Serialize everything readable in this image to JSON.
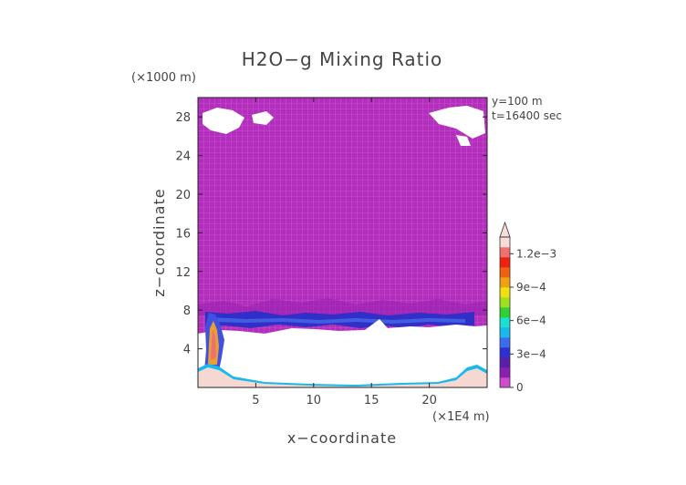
{
  "chart_data": {
    "type": "heatmap",
    "title": "H2O−g Mixing Ratio",
    "xlabel": "x−coordinate",
    "ylabel": "z−coordinate",
    "x_unit": "(×1E4 m)",
    "y_unit": "(×1000 m)",
    "info_lines": [
      "y=100  m",
      "t=16400 sec"
    ],
    "xlim": [
      0,
      25
    ],
    "ylim": [
      0,
      30
    ],
    "x_ticks": [
      5,
      10,
      15,
      20
    ],
    "y_ticks": [
      4,
      8,
      12,
      16,
      20,
      24,
      28
    ],
    "x_tick_labels": [
      "5",
      "10",
      "15",
      "20"
    ],
    "y_tick_labels": [
      "4",
      "8",
      "12",
      "16",
      "20",
      "24",
      "28"
    ],
    "colorbar": {
      "range": [
        0,
        0.00135
      ],
      "ticks": [
        0,
        0.0003,
        0.0006,
        0.0009,
        0.0012
      ],
      "tick_labels": [
        "0",
        "3e−4",
        "6e−4",
        "9e−4",
        "1.2e−3"
      ],
      "colors": [
        "#d04ad0",
        "#8a1fb0",
        "#5a1fa8",
        "#2d2fd0",
        "#3a6cf0",
        "#19b9f0",
        "#19e0d0",
        "#30d030",
        "#a0e020",
        "#f0e010",
        "#f0a010",
        "#f06010",
        "#f02010",
        "#f07070",
        "#f8dcd8"
      ],
      "extend": "max"
    },
    "fields": {
      "upper_layer_value": 3e-05,
      "blue_band_z": [
        6.2,
        8.5
      ],
      "dry_region_z": [
        0.6,
        6.2
      ],
      "surface_layer_top_z": 0.6,
      "plume_x": 1.3
    }
  }
}
